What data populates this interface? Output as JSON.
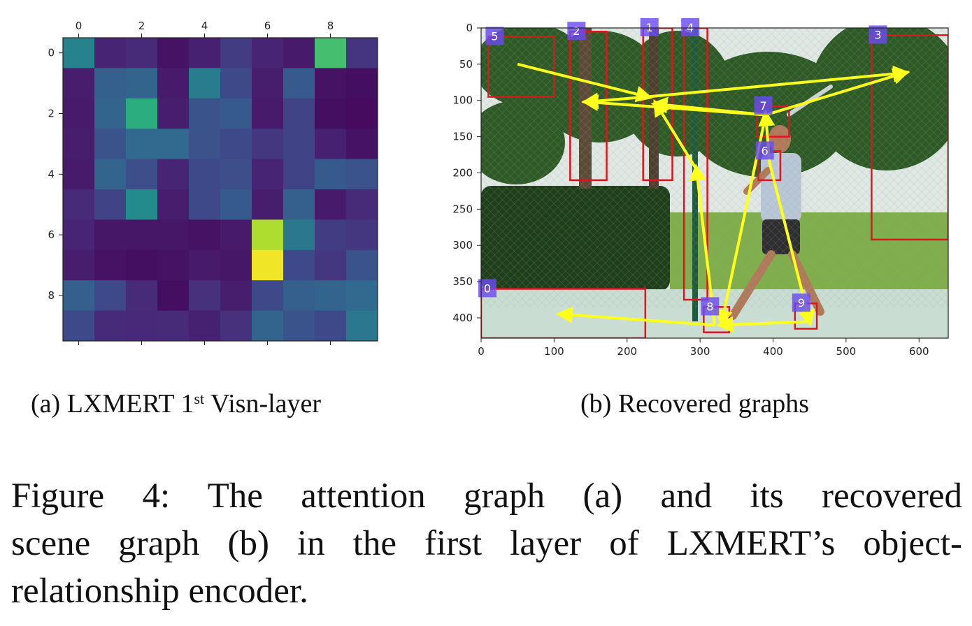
{
  "heatmap": {
    "chart_data": {
      "type": "heatmap",
      "rows": 10,
      "cols": 10,
      "x_ticks": [
        "0",
        "2",
        "4",
        "6",
        "8"
      ],
      "y_ticks": [
        "0",
        "2",
        "4",
        "6",
        "8"
      ],
      "colormap": "viridis",
      "values": [
        [
          0.45,
          0.1,
          0.12,
          0.05,
          0.09,
          0.18,
          0.1,
          0.07,
          0.7,
          0.15
        ],
        [
          0.08,
          0.3,
          0.32,
          0.07,
          0.42,
          0.22,
          0.08,
          0.28,
          0.05,
          0.04
        ],
        [
          0.07,
          0.32,
          0.62,
          0.08,
          0.26,
          0.28,
          0.07,
          0.2,
          0.04,
          0.03
        ],
        [
          0.08,
          0.26,
          0.34,
          0.34,
          0.25,
          0.22,
          0.16,
          0.2,
          0.09,
          0.05
        ],
        [
          0.07,
          0.32,
          0.24,
          0.1,
          0.22,
          0.24,
          0.1,
          0.2,
          0.28,
          0.26
        ],
        [
          0.12,
          0.2,
          0.48,
          0.08,
          0.22,
          0.28,
          0.08,
          0.3,
          0.07,
          0.12
        ],
        [
          0.1,
          0.06,
          0.06,
          0.06,
          0.05,
          0.07,
          0.88,
          0.4,
          0.18,
          0.16
        ],
        [
          0.08,
          0.05,
          0.04,
          0.05,
          0.07,
          0.06,
          0.98,
          0.22,
          0.16,
          0.26
        ],
        [
          0.3,
          0.22,
          0.12,
          0.04,
          0.14,
          0.08,
          0.22,
          0.3,
          0.32,
          0.34
        ],
        [
          0.22,
          0.12,
          0.11,
          0.12,
          0.09,
          0.14,
          0.32,
          0.26,
          0.22,
          0.4
        ]
      ]
    },
    "caption_prefix": "(a)",
    "caption_text": "LXMERT 1",
    "caption_sup": "st",
    "caption_suffix": " Visn-layer"
  },
  "scene": {
    "chart_data": {
      "type": "scatter",
      "x_ticks": [
        "0",
        "100",
        "200",
        "300",
        "400",
        "500",
        "600"
      ],
      "y_ticks": [
        "0",
        "50",
        "100",
        "150",
        "200",
        "250",
        "300",
        "350",
        "400"
      ],
      "xlim": [
        0,
        640
      ],
      "ylim": [
        0,
        428
      ],
      "boxes": [
        {
          "id": "0",
          "x1": 0,
          "y1": 360,
          "x2": 225,
          "y2": 428
        },
        {
          "id": "1",
          "x1": 222,
          "y1": 0,
          "x2": 262,
          "y2": 210
        },
        {
          "id": "2",
          "x1": 122,
          "y1": 5,
          "x2": 172,
          "y2": 210
        },
        {
          "id": "3",
          "x1": 535,
          "y1": 10,
          "x2": 640,
          "y2": 292
        },
        {
          "id": "4",
          "x1": 278,
          "y1": 0,
          "x2": 310,
          "y2": 375
        },
        {
          "id": "5",
          "x1": 10,
          "y1": 12,
          "x2": 100,
          "y2": 95
        },
        {
          "id": "6",
          "x1": 380,
          "y1": 170,
          "x2": 410,
          "y2": 210
        },
        {
          "id": "7",
          "x1": 378,
          "y1": 108,
          "x2": 422,
          "y2": 150
        },
        {
          "id": "8",
          "x1": 305,
          "y1": 385,
          "x2": 340,
          "y2": 420
        },
        {
          "id": "9",
          "x1": 430,
          "y1": 380,
          "x2": 460,
          "y2": 415
        }
      ],
      "edges": [
        {
          "from": [
            50,
            50
          ],
          "to": [
            228,
            95
          ]
        },
        {
          "from": [
            228,
            95
          ],
          "to": [
            580,
            62
          ]
        },
        {
          "from": [
            228,
            95
          ],
          "to": [
            145,
            102
          ]
        },
        {
          "from": [
            390,
            120
          ],
          "to": [
            145,
            102
          ]
        },
        {
          "from": [
            390,
            120
          ],
          "to": [
            240,
            105
          ]
        },
        {
          "from": [
            295,
            195
          ],
          "to": [
            240,
            105
          ]
        },
        {
          "from": [
            320,
            410
          ],
          "to": [
            295,
            195
          ]
        },
        {
          "from": [
            390,
            120
          ],
          "to": [
            580,
            62
          ]
        },
        {
          "from": [
            390,
            120
          ],
          "to": [
            330,
            405
          ]
        },
        {
          "from": [
            395,
            185
          ],
          "to": [
            450,
            405
          ]
        },
        {
          "from": [
            395,
            185
          ],
          "to": [
            390,
            120
          ]
        },
        {
          "from": [
            450,
            405
          ],
          "to": [
            330,
            410
          ]
        },
        {
          "from": [
            320,
            410
          ],
          "to": [
            110,
            395
          ]
        }
      ]
    },
    "caption_prefix": "(b)",
    "caption_text": "Recovered graphs"
  },
  "figure_caption": {
    "line1": "Figure 4:  The attention graph (a) and its recovered",
    "line2": "scene graph (b) in the first layer of LXMERT’s object-",
    "line3": "relationship encoder."
  },
  "colors": {
    "box_stroke": "#e0141e",
    "box_label_bg": "#6a4cf0",
    "edge": "#ffff1e",
    "sky": "#dfe8e2",
    "foliage": "#2e5a26",
    "hedge": "#1f3f1a",
    "grass": "#7fae4a",
    "court": "#c9ddd2"
  }
}
